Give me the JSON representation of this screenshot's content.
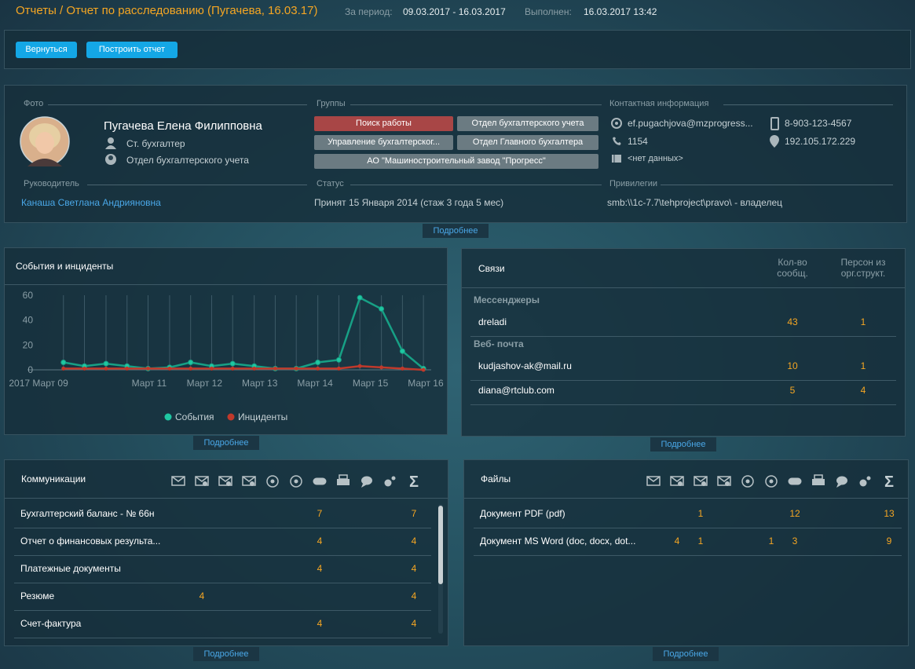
{
  "header": {
    "title": "Отчеты / Отчет по расследованию (Пугачева, 16.03.17)",
    "period_label": "За период:",
    "period": "09.03.2017 - 16.03.2017",
    "done_label": "Выполнен:",
    "done": "16.03.2017 13:42"
  },
  "toolbar": {
    "buttons": [
      "Вернуться",
      "Построить отчет"
    ]
  },
  "profile": {
    "labels": {
      "photo": "Фото",
      "groups": "Группы",
      "contacts": "Контактная информация",
      "manager": "Руководитель",
      "status": "Статус",
      "privileges": "Привилегии"
    },
    "name": "Пугачева Елена Филипповна",
    "position": "Ст. бухгалтер",
    "department": "Отдел бухгалтерского учета",
    "groups": [
      {
        "name": "Поиск работы",
        "color": "#a84646"
      },
      {
        "name": "Отдел бухгалтерского учета",
        "color": "#6b7b82"
      },
      {
        "name": "Управление бухгалтерског...",
        "color": "#6b7b82"
      },
      {
        "name": "Отдел Главного бухгалтера",
        "color": "#6b7b82"
      },
      {
        "name": "АО \"Машиностроительный завод \"Прогресс\"",
        "color": "#6b7b82"
      }
    ],
    "contacts": {
      "email": "ef.pugachjova@mzprogress...",
      "phone": "8-903-123-4567",
      "ext": "1154",
      "ip": "192.105.172.229",
      "other": "<нет данных>"
    },
    "manager": "Канаша Светлана Андрияновна",
    "status": "Принят 15 Января 2014 (стаж 3 года 5 мес)",
    "privileges": "smb:\\\\1c-7.7\\tehproject\\pravo\\ - владелец",
    "more": "Подробнее"
  },
  "events": {
    "more": "Подробнее",
    "chart_data": {
      "type": "line",
      "title": "События и инциденты",
      "x": [
        9.45,
        9.83,
        10.22,
        10.6,
        10.98,
        11.37,
        11.75,
        12.13,
        12.51,
        12.9,
        13.28,
        13.66,
        14.05,
        14.43,
        14.81,
        15.2,
        15.58,
        15.96
      ],
      "series": [
        {
          "name": "События",
          "color": "#17a085",
          "values": [
            6,
            3,
            5,
            3,
            1,
            2,
            6,
            3,
            5,
            3,
            1,
            1,
            6,
            8,
            58,
            49,
            15,
            1
          ]
        },
        {
          "name": "Инциденты",
          "color": "#c0392b",
          "values": [
            1,
            1,
            1,
            1,
            1,
            1,
            1,
            1,
            1,
            1,
            1,
            1,
            1,
            1,
            3,
            2,
            1,
            0
          ]
        }
      ],
      "xlim": [
        8.8,
        16.1
      ],
      "xticks": [
        {
          "value": 9,
          "label": "2017 Март 09"
        },
        {
          "value": 11,
          "label": "Март 11"
        },
        {
          "value": 12,
          "label": "Март 12"
        },
        {
          "value": 13,
          "label": "Март 13"
        },
        {
          "value": 14,
          "label": "Март 14"
        },
        {
          "value": 15,
          "label": "Март 15"
        },
        {
          "value": 16,
          "label": "Март 16"
        }
      ],
      "ylim": [
        0,
        60
      ],
      "yticks": [
        0,
        20,
        40,
        60
      ],
      "legend": "bottom"
    }
  },
  "links": {
    "title": "Связи",
    "columns": [
      "Кол-во сообщ.",
      "Персон из орг.структ."
    ],
    "groups": [
      {
        "name": "Мессенджеры",
        "rows": [
          {
            "name": "dreladi",
            "values": [
              43,
              1
            ]
          }
        ]
      },
      {
        "name": "Веб- почта",
        "rows": [
          {
            "name": "kudjashov-ak@mail.ru",
            "values": [
              10,
              1
            ]
          },
          {
            "name": "diana@rtclub.com",
            "values": [
              5,
              4
            ]
          }
        ]
      }
    ],
    "more": "Подробнее"
  },
  "communications": {
    "title": "Коммуникации",
    "sum_label": "Σ",
    "rows": [
      {
        "name": "Бухгалтерский баланс - № 66н",
        "cells": [
          null,
          null,
          null,
          null,
          null,
          null,
          7,
          null,
          null,
          null,
          7
        ]
      },
      {
        "name": "Отчет о финансовых результа...",
        "cells": [
          null,
          null,
          null,
          null,
          null,
          null,
          4,
          null,
          null,
          null,
          4
        ]
      },
      {
        "name": "Платежные документы",
        "cells": [
          null,
          null,
          null,
          null,
          null,
          null,
          4,
          null,
          null,
          null,
          4
        ]
      },
      {
        "name": "Резюме",
        "cells": [
          null,
          4,
          null,
          null,
          null,
          null,
          null,
          null,
          null,
          null,
          4
        ]
      },
      {
        "name": "Счет-фактура",
        "cells": [
          null,
          null,
          null,
          null,
          null,
          null,
          4,
          null,
          null,
          null,
          4
        ]
      }
    ],
    "more": "Подробнее"
  },
  "files": {
    "title": "Файлы",
    "sum_label": "Σ",
    "rows": [
      {
        "name": "Документ PDF (pdf)",
        "cells": [
          null,
          null,
          1,
          null,
          null,
          null,
          12,
          null,
          null,
          null,
          13
        ]
      },
      {
        "name": "Документ MS Word (doc, docx, dot...",
        "cells": [
          null,
          4,
          1,
          null,
          null,
          1,
          3,
          null,
          null,
          null,
          9
        ]
      }
    ],
    "more": "Подробнее"
  }
}
